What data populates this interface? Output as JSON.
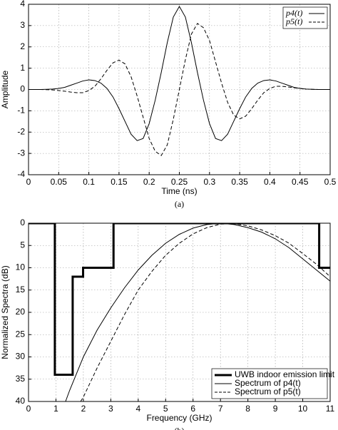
{
  "chart_data": [
    {
      "type": "line",
      "caption": "(a)",
      "xlabel": "Time (ns)",
      "ylabel": "Amplitude",
      "x": [
        0,
        0.01,
        0.02,
        0.03,
        0.04,
        0.05,
        0.06,
        0.07,
        0.08,
        0.09,
        0.1,
        0.11,
        0.12,
        0.13,
        0.14,
        0.15,
        0.16,
        0.17,
        0.18,
        0.19,
        0.2,
        0.21,
        0.22,
        0.23,
        0.24,
        0.25,
        0.26,
        0.27,
        0.28,
        0.29,
        0.3,
        0.31,
        0.32,
        0.33,
        0.34,
        0.35,
        0.36,
        0.37,
        0.38,
        0.39,
        0.4,
        0.41,
        0.42,
        0.43,
        0.44,
        0.45,
        0.46,
        0.47,
        0.48,
        0.49,
        0.5
      ],
      "series": [
        {
          "name": "p4(t)",
          "color": "#000000",
          "dash": false,
          "width": 1,
          "values": [
            0,
            0,
            0,
            0.01,
            0.02,
            0.05,
            0.1,
            0.2,
            0.3,
            0.4,
            0.45,
            0.42,
            0.3,
            0.05,
            -0.35,
            -0.9,
            -1.5,
            -2.1,
            -2.4,
            -2.3,
            -1.6,
            -0.5,
            0.8,
            2.2,
            3.4,
            3.9,
            3.4,
            2.2,
            0.8,
            -0.5,
            -1.6,
            -2.3,
            -2.4,
            -2.1,
            -1.5,
            -0.9,
            -0.35,
            0.05,
            0.3,
            0.42,
            0.45,
            0.4,
            0.3,
            0.2,
            0.1,
            0.05,
            0.02,
            0.01,
            0,
            0,
            0
          ]
        },
        {
          "name": "p5(t)",
          "color": "#000000",
          "dash": true,
          "width": 1,
          "values": [
            0,
            0,
            0,
            -0.01,
            -0.02,
            -0.05,
            -0.08,
            -0.12,
            -0.15,
            -0.15,
            -0.05,
            0.15,
            0.5,
            0.9,
            1.25,
            1.38,
            1.2,
            0.6,
            -0.3,
            -1.3,
            -2.3,
            -2.9,
            -3.1,
            -2.6,
            -1.4,
            0,
            1.4,
            2.6,
            3.1,
            2.9,
            2.3,
            1.3,
            0.3,
            -0.6,
            -1.2,
            -1.38,
            -1.25,
            -0.9,
            -0.5,
            -0.15,
            0.05,
            0.15,
            0.15,
            0.12,
            0.08,
            0.05,
            0.02,
            0.01,
            0,
            0,
            0
          ]
        }
      ],
      "xlim": [
        0,
        0.5
      ],
      "ylim": [
        -4,
        4
      ],
      "xticks": [
        0,
        0.05,
        0.1,
        0.15,
        0.2,
        0.25,
        0.3,
        0.35,
        0.4,
        0.45,
        0.5
      ],
      "yticks": [
        -4,
        -3,
        -2,
        -1,
        0,
        1,
        2,
        3,
        4
      ],
      "grid": true,
      "legend": "upper right"
    },
    {
      "type": "line",
      "caption": "(b)",
      "xlabel": "Frequency (GHz)",
      "ylabel": "Normalized Spectra (dB)",
      "series": [
        {
          "name": "UWB indoor emission limit",
          "color": "#000000",
          "dash": false,
          "width": 3,
          "x": [
            0,
            0.96,
            0.96,
            1.61,
            1.61,
            1.99,
            1.99,
            3.1,
            3.1,
            10.6,
            10.6,
            11
          ],
          "values": [
            0,
            0,
            34,
            34,
            12,
            12,
            10,
            10,
            0,
            0,
            10,
            10
          ]
        },
        {
          "name": "Spectrum of p4(t)",
          "color": "#000000",
          "dash": false,
          "width": 1,
          "x": [
            1.35,
            1.5,
            2,
            2.5,
            3,
            3.5,
            4,
            4.5,
            5,
            5.5,
            6,
            6.5,
            7,
            7.5,
            8,
            8.5,
            9,
            9.5,
            10,
            10.5,
            11
          ],
          "values": [
            40,
            37.5,
            30,
            24,
            19,
            14.5,
            10.5,
            7.2,
            4.5,
            2.5,
            1.1,
            0.3,
            0,
            0.3,
            1,
            2,
            3.5,
            5.5,
            8,
            10.5,
            13
          ]
        },
        {
          "name": "Spectrum of p5(t)",
          "color": "#000000",
          "dash": true,
          "width": 1,
          "x": [
            1.9,
            2,
            2.5,
            3,
            3.5,
            4,
            4.5,
            5,
            5.5,
            6,
            6.5,
            7,
            7.5,
            8,
            8.5,
            9,
            9.5,
            10,
            10.5,
            11
          ],
          "values": [
            40,
            39,
            32.5,
            26.5,
            20.5,
            15,
            10.8,
            7.2,
            4.5,
            2.4,
            1,
            0.2,
            0.1,
            0.6,
            1.5,
            2.8,
            4.5,
            6.8,
            9.2,
            12
          ]
        }
      ],
      "xlim": [
        0,
        11
      ],
      "ylim": [
        40,
        0
      ],
      "xticks": [
        0,
        1,
        2,
        3,
        4,
        5,
        6,
        7,
        8,
        9,
        10,
        11
      ],
      "yticks": [
        0,
        5,
        10,
        15,
        20,
        25,
        30,
        35,
        40
      ],
      "grid": true,
      "legend": "lower right"
    }
  ]
}
